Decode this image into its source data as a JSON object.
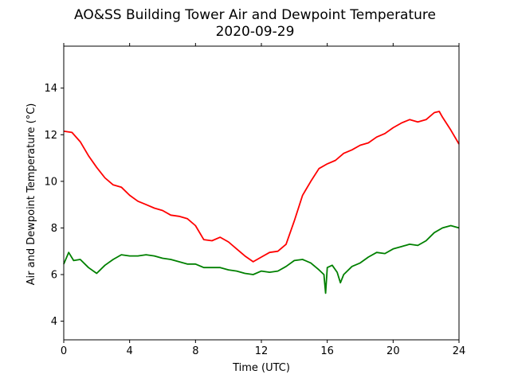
{
  "chart_data": {
    "type": "line",
    "title": "AO&SS Building Tower Air and Dewpoint Temperature",
    "subtitle": "2020-09-29",
    "xlabel": "Time (UTC)",
    "ylabel": "Air and Dewpoint Temperature (°C)",
    "xlim": [
      0,
      24
    ],
    "ylim": [
      3.2,
      15.8
    ],
    "xticks": [
      0,
      4,
      8,
      12,
      16,
      20,
      24
    ],
    "yticks": [
      4,
      6,
      8,
      10,
      12,
      14
    ],
    "grid": false,
    "series": [
      {
        "color": "#ff0000",
        "x": [
          0,
          0.5,
          1,
          1.5,
          2,
          2.5,
          3,
          3.5,
          4,
          4.5,
          5,
          5.5,
          6,
          6.5,
          7,
          7.5,
          8,
          8.5,
          9,
          9.5,
          10,
          10.5,
          11,
          11.5,
          12,
          12.5,
          13,
          13.5,
          14,
          14.5,
          15,
          15.5,
          16,
          16.5,
          17,
          17.5,
          18,
          18.5,
          19,
          19.5,
          20,
          20.5,
          21,
          21.5,
          22,
          22.5,
          22.8,
          23,
          23.5,
          24
        ],
        "y": [
          12.15,
          12.1,
          11.7,
          11.1,
          10.6,
          10.15,
          9.85,
          9.75,
          9.4,
          9.15,
          9.0,
          8.85,
          8.75,
          8.55,
          8.5,
          8.4,
          8.1,
          7.5,
          7.45,
          7.6,
          7.4,
          7.1,
          6.8,
          6.55,
          6.75,
          6.95,
          7.0,
          7.3,
          8.3,
          9.4,
          10.0,
          10.55,
          10.75,
          10.9,
          11.2,
          11.35,
          11.55,
          11.65,
          11.9,
          12.05,
          12.3,
          12.5,
          12.65,
          12.55,
          12.65,
          12.95,
          13.0,
          12.75,
          12.2,
          11.6
        ]
      },
      {
        "color": "#008000",
        "x": [
          0,
          0.3,
          0.6,
          1,
          1.5,
          2,
          2.5,
          3,
          3.5,
          4,
          4.5,
          5,
          5.5,
          6,
          6.5,
          7,
          7.5,
          8,
          8.5,
          9,
          9.5,
          10,
          10.5,
          11,
          11.5,
          12,
          12.5,
          13,
          13.5,
          14,
          14.5,
          15,
          15.5,
          15.8,
          15.9,
          16,
          16.3,
          16.6,
          16.8,
          17,
          17.5,
          18,
          18.5,
          19,
          19.5,
          20,
          20.5,
          21,
          21.5,
          22,
          22.5,
          23,
          23.5,
          24
        ],
        "y": [
          6.45,
          6.95,
          6.6,
          6.65,
          6.3,
          6.05,
          6.4,
          6.65,
          6.85,
          6.8,
          6.8,
          6.85,
          6.8,
          6.7,
          6.65,
          6.55,
          6.45,
          6.45,
          6.3,
          6.3,
          6.3,
          6.2,
          6.15,
          6.05,
          6.0,
          6.15,
          6.1,
          6.15,
          6.35,
          6.6,
          6.65,
          6.5,
          6.2,
          6.0,
          5.2,
          6.3,
          6.4,
          6.1,
          5.65,
          6.0,
          6.35,
          6.5,
          6.75,
          6.95,
          6.9,
          7.1,
          7.2,
          7.3,
          7.25,
          7.45,
          7.8,
          8.0,
          8.1,
          8.0
        ]
      }
    ]
  }
}
